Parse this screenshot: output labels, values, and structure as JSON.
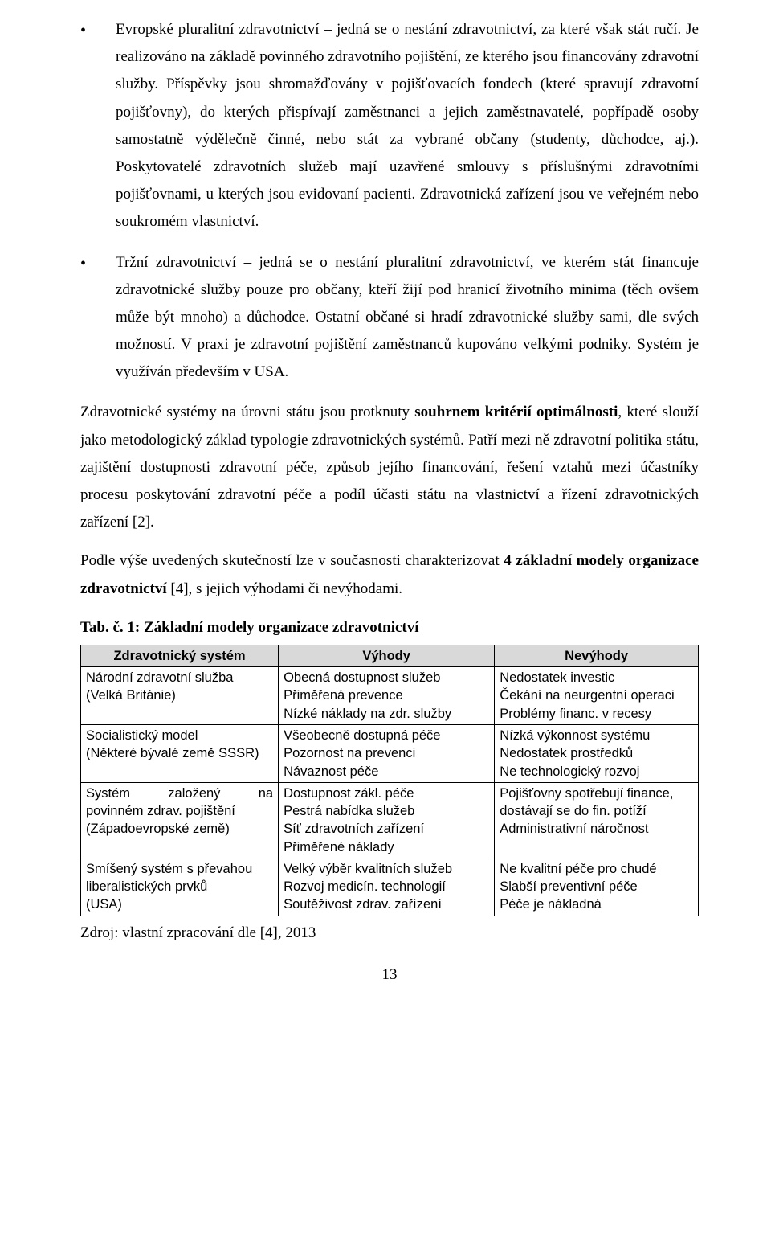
{
  "bullets": [
    "Evropské pluralitní zdravotnictví – jedná se o nestání zdravotnictví, za které však stát ručí. Je realizováno na základě povinného zdravotního pojištění, ze kterého jsou financovány zdravotní služby. Příspěvky jsou shromažďovány v pojišťovacích fondech (které spravují zdravotní pojišťovny), do kterých přispívají zaměstnanci a jejich zaměstnavatelé, popřípadě osoby samostatně výdělečně činné, nebo stát za vybrané občany (studenty, důchodce, aj.). Poskytovatelé zdravotních služeb mají uzavřené smlouvy s příslušnými zdravotními pojišťovnami, u kterých jsou evidovaní pacienti. Zdravotnická zařízení jsou ve veřejném nebo soukromém vlastnictví.",
    "Tržní zdravotnictví – jedná se o nestání pluralitní zdravotnictví, ve kterém stát financuje zdravotnické služby pouze pro občany, kteří žijí pod hranicí životního minima (těch ovšem může být mnoho) a důchodce. Ostatní občané si hradí zdravotnické služby sami, dle svých možností. V praxi je zdravotní pojištění zaměstnanců kupováno velkými podniky. Systém je využíván především v USA."
  ],
  "para1_a": "Zdravotnické systémy na úrovni státu jsou protknuty ",
  "para1_bold": "souhrnem kritérií optimálnosti",
  "para1_b": ", které slouží jako metodologický základ typologie zdravotnických systémů. Patří mezi ně zdravotní politika státu, zajištění dostupnosti zdravotní péče, způsob jejího financování, řešení vztahů mezi účastníky procesu poskytování zdravotní péče a podíl účasti státu na vlastnictví a řízení zdravotnických zařízení [2].",
  "para2_a": "Podle výše uvedených skutečností lze v současnosti charakterizovat ",
  "para2_bold": "4 základní modely organizace zdravotnictví",
  "para2_b": " [4], s jejich výhodami či nevýhodami.",
  "table_caption": "Tab. č.  1: Základní modely organizace zdravotnictví",
  "headers": [
    "Zdravotnický systém",
    "Výhody",
    "Nevýhody"
  ],
  "rows": [
    {
      "c1": [
        "Národní zdravotní služba",
        "(Velká Británie)"
      ],
      "c2": [
        "Obecná dostupnost služeb",
        "Přiměřená prevence",
        "Nízké náklady na zdr. služby"
      ],
      "c3": [
        "Nedostatek investic",
        "Čekání na neurgentní operaci",
        "Problémy financ. v recesy"
      ]
    },
    {
      "c1": [
        "Socialistický model",
        "(Některé bývalé země SSSR)"
      ],
      "c2": [
        "Všeobecně dostupná péče",
        "Pozornost na prevenci",
        "Návaznost péče"
      ],
      "c3": [
        "Nízká výkonnost systému",
        "Nedostatek prostředků",
        "Ne technologický rozvoj"
      ]
    },
    {
      "c1_justified": [
        "Systém",
        "založený",
        "na"
      ],
      "c1_rest": [
        "povinném zdrav. pojištění",
        "(Západoevropské země)"
      ],
      "c2": [
        "Dostupnost zákl. péče",
        "Pestrá nabídka služeb",
        "Síť zdravotních zařízení",
        "Přiměřené náklady"
      ],
      "c3": [
        "Pojišťovny spotřebují finance,",
        "dostávají se do fin. potíží",
        "Administrativní náročnost"
      ]
    },
    {
      "c1": [
        "Smíšený systém s převahou",
        "liberalistických prvků",
        "(USA)"
      ],
      "c2": [
        "Velký výběr kvalitních služeb",
        "Rozvoj medicín. technologií",
        "Soutěživost zdrav. zařízení"
      ],
      "c3": [
        "Ne kvalitní péče pro chudé",
        "Slabší preventivní péče",
        "Péče je nákladná"
      ]
    }
  ],
  "source": "Zdroj: vlastní zpracování dle [4], 2013",
  "page_number": "13"
}
